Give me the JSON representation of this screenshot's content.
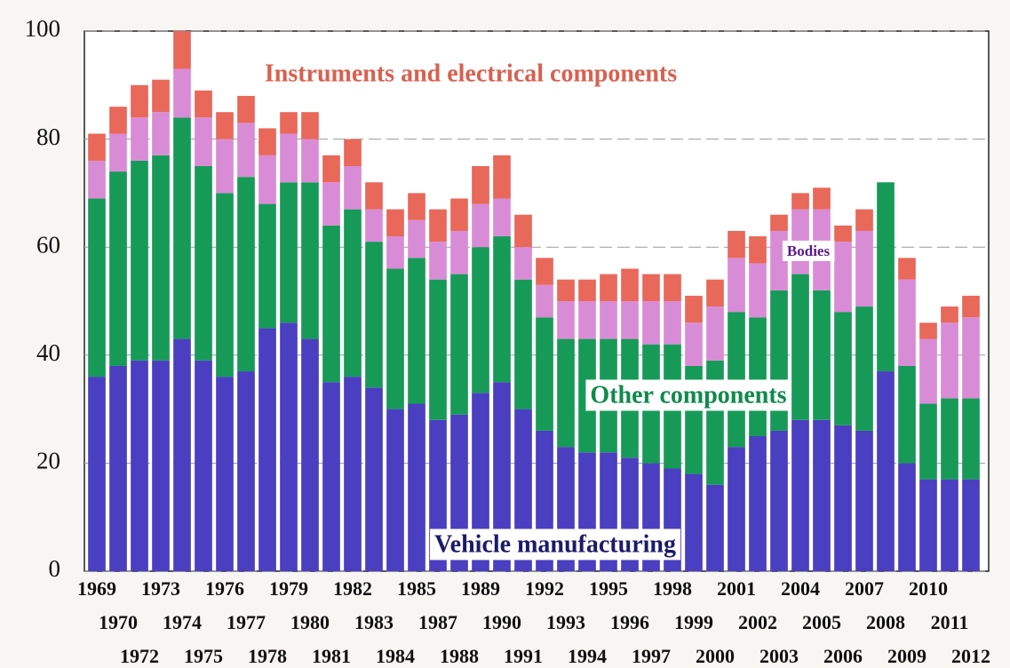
{
  "chart_data": {
    "type": "stacked_bar",
    "categories": [
      "1969",
      "1970",
      "1972",
      "1973",
      "1974",
      "1975",
      "1976",
      "1977",
      "1978",
      "1979",
      "1980",
      "1981",
      "1982",
      "1983",
      "1984",
      "1985",
      "1987",
      "1988",
      "1989",
      "1990",
      "1991",
      "1992",
      "1993",
      "1994",
      "1995",
      "1996",
      "1997",
      "1998",
      "1999",
      "2000",
      "2001",
      "2002",
      "2003",
      "2004",
      "2005",
      "2006",
      "2007",
      "2008",
      "2009",
      "2010",
      "2011",
      "2012"
    ],
    "series": [
      {
        "name": "Vehicle manufacturing",
        "color": "#4a3fc0",
        "values": [
          36,
          38,
          39,
          39,
          43,
          39,
          36,
          37,
          45,
          46,
          43,
          35,
          36,
          34,
          30,
          31,
          28,
          29,
          33,
          35,
          30,
          26,
          23,
          22,
          22,
          21,
          20,
          19,
          18,
          16,
          23,
          25,
          26,
          28,
          28,
          27,
          26,
          37,
          20,
          17,
          17,
          17
        ]
      },
      {
        "name": "Other components",
        "color": "#179a58",
        "values": [
          33,
          36,
          37,
          38,
          41,
          36,
          34,
          36,
          23,
          26,
          29,
          29,
          31,
          27,
          26,
          27,
          26,
          26,
          27,
          27,
          24,
          21,
          20,
          21,
          21,
          22,
          22,
          23,
          20,
          23,
          25,
          22,
          26,
          27,
          24,
          21,
          23,
          35,
          18,
          14,
          15,
          15
        ]
      },
      {
        "name": "Bodies",
        "color": "#d98cd6",
        "values": [
          7,
          7,
          8,
          8,
          9,
          9,
          10,
          10,
          9,
          9,
          8,
          8,
          8,
          6,
          6,
          7,
          7,
          8,
          8,
          7,
          6,
          6,
          7,
          7,
          7,
          7,
          8,
          8,
          8,
          10,
          10,
          10,
          11,
          12,
          15,
          13,
          14,
          0,
          16,
          12,
          14,
          15
        ]
      },
      {
        "name": "Instruments and electrical components",
        "color": "#e8685a",
        "values": [
          5,
          5,
          6,
          6,
          7,
          5,
          5,
          5,
          5,
          4,
          5,
          5,
          5,
          5,
          5,
          5,
          6,
          6,
          7,
          8,
          6,
          5,
          4,
          4,
          5,
          6,
          5,
          5,
          5,
          5,
          5,
          5,
          3,
          3,
          4,
          3,
          4,
          0,
          4,
          3,
          3,
          4
        ]
      }
    ],
    "ylim": [
      0,
      100
    ],
    "yticks": [
      0,
      20,
      40,
      60,
      80,
      100
    ],
    "grid": true
  }
}
